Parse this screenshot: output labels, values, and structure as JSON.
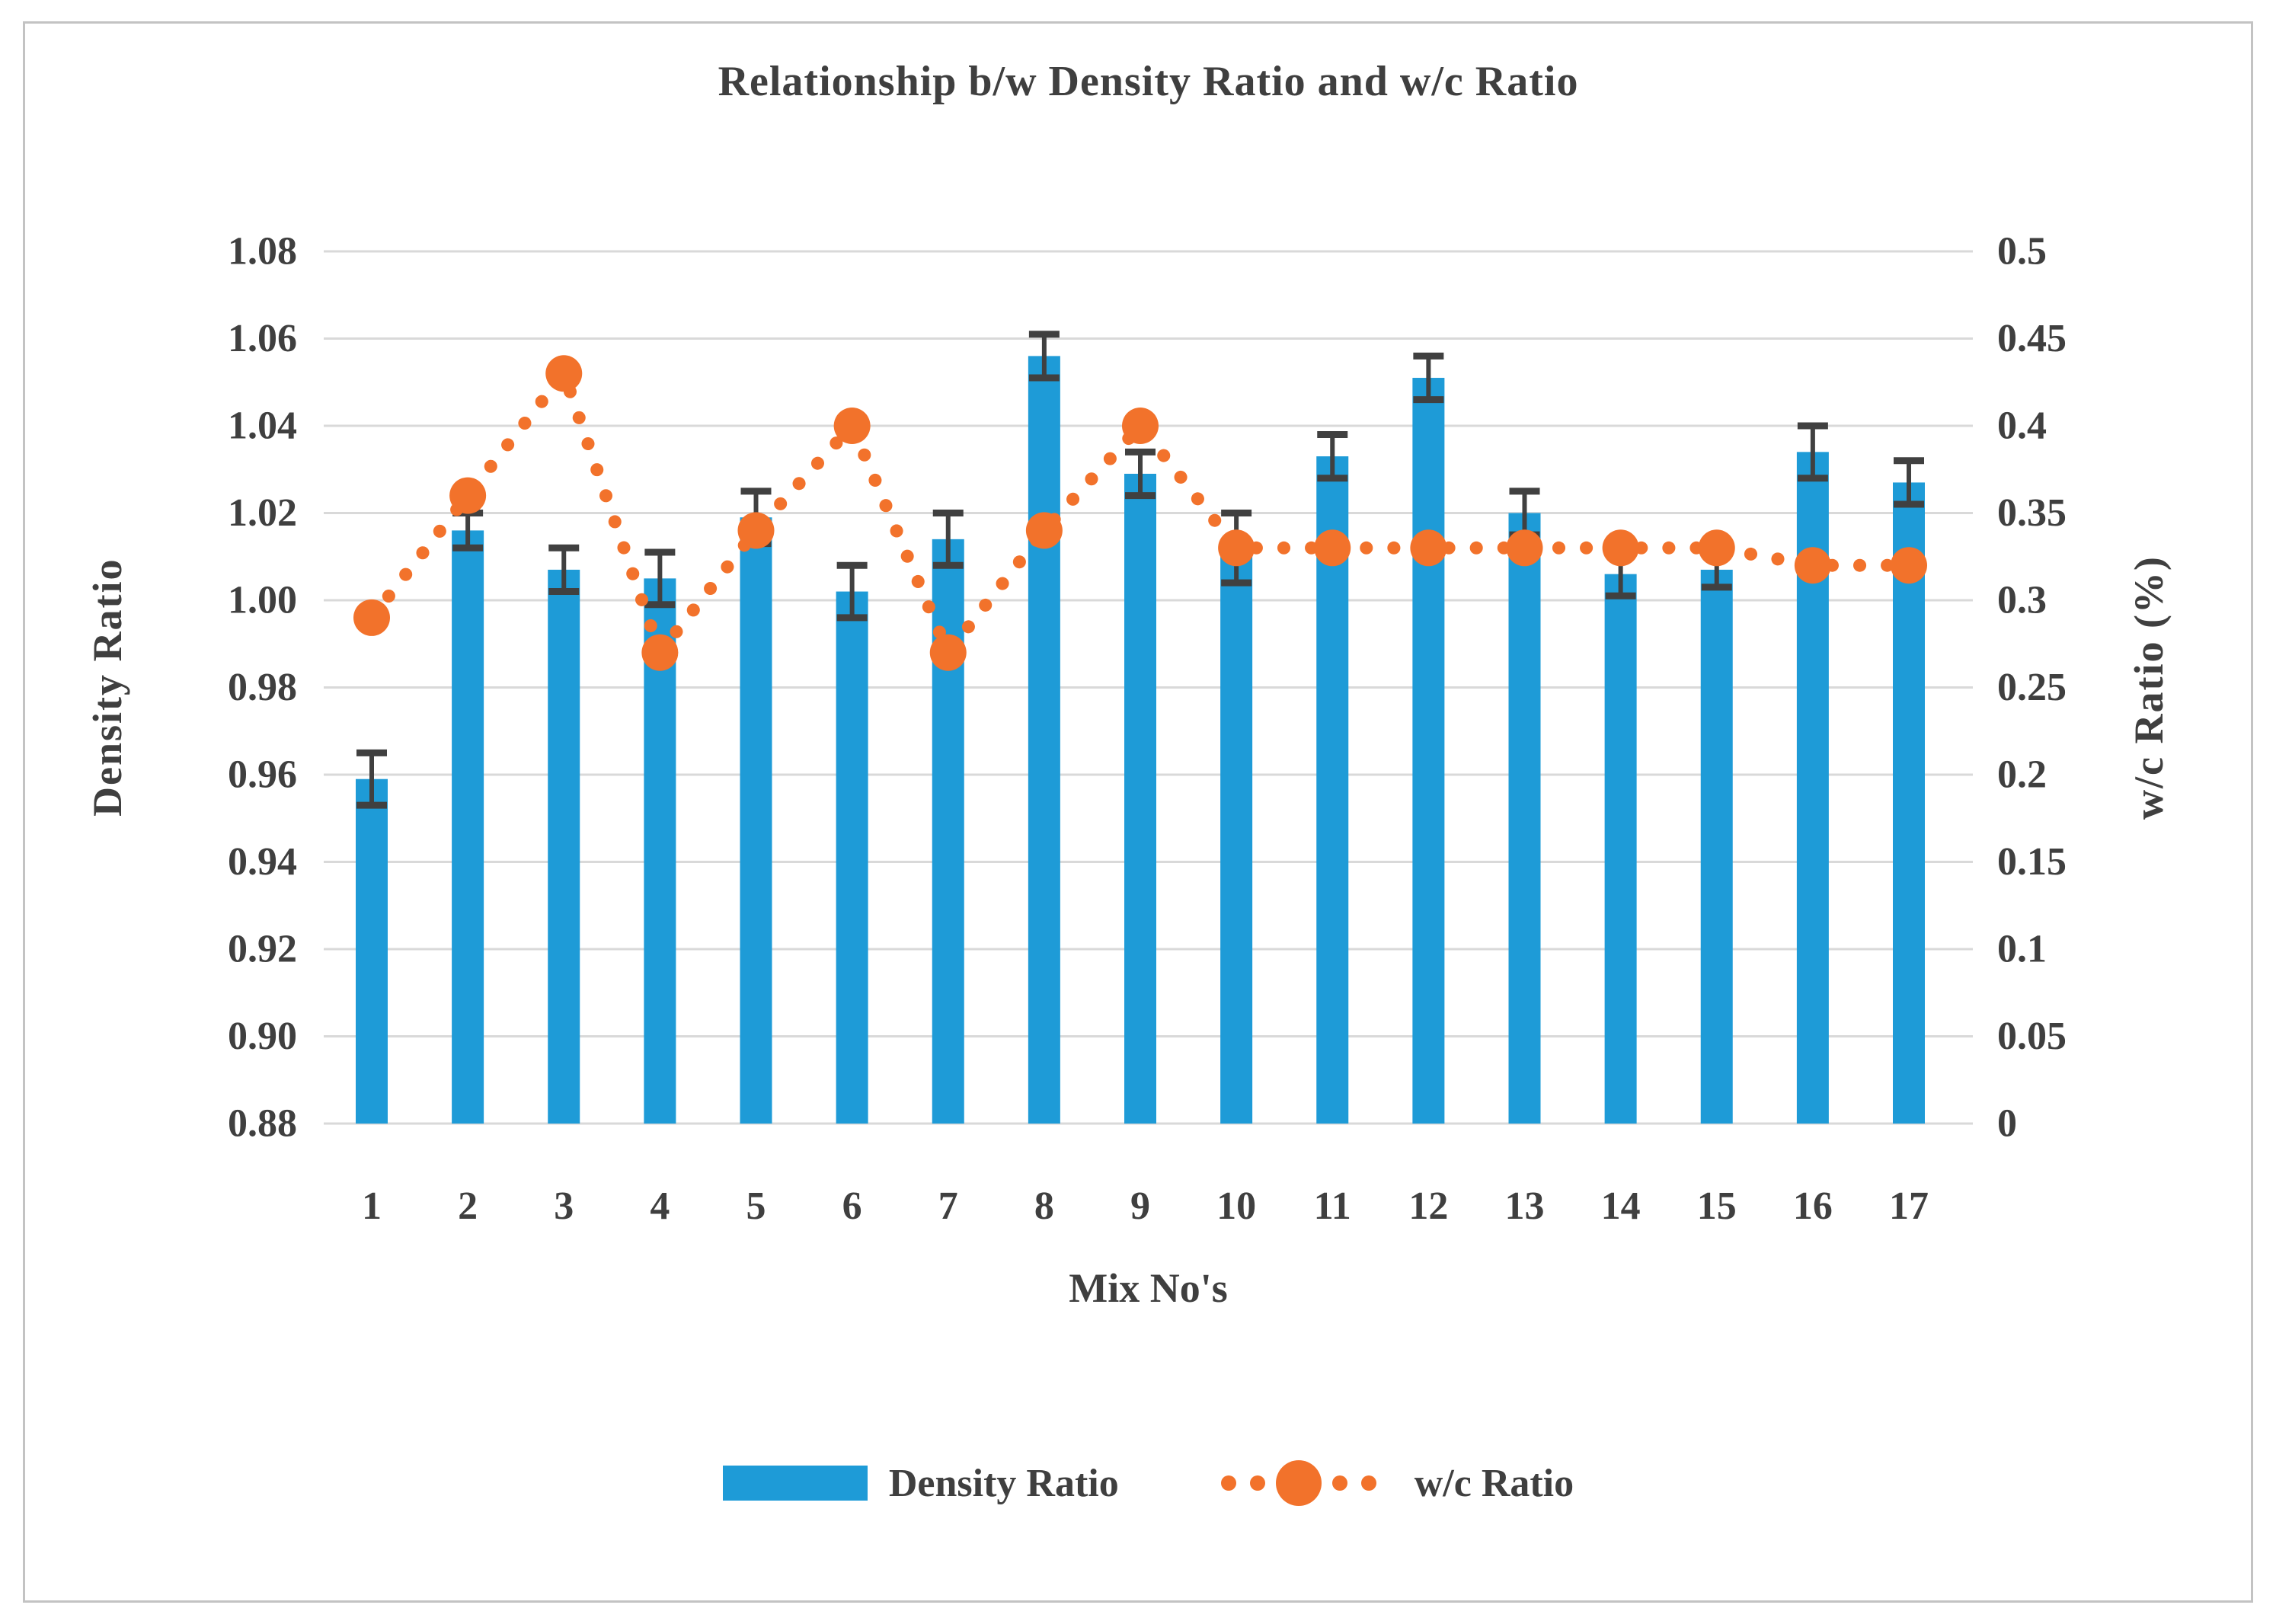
{
  "chart_data": {
    "type": "bar",
    "combo": "bar+dotted-line",
    "title": "Relationship b/w Density Ratio and w/c Ratio",
    "xlabel": "Mix No's",
    "categories": [
      "1",
      "2",
      "3",
      "4",
      "5",
      "6",
      "7",
      "8",
      "9",
      "10",
      "11",
      "12",
      "13",
      "14",
      "15",
      "16",
      "17"
    ],
    "series": [
      {
        "name": "Density Ratio",
        "type": "bar",
        "axis": "left",
        "values": [
          0.959,
          1.016,
          1.007,
          1.005,
          1.019,
          1.002,
          1.014,
          1.056,
          1.029,
          1.012,
          1.033,
          1.051,
          1.02,
          1.006,
          1.007,
          1.034,
          1.027
        ],
        "error_bars": [
          0.006,
          0.004,
          0.005,
          0.006,
          0.006,
          0.006,
          0.006,
          0.005,
          0.005,
          0.008,
          0.005,
          0.005,
          0.005,
          0.005,
          0.004,
          0.006,
          0.005
        ]
      },
      {
        "name": "w/c Ratio",
        "type": "line",
        "line_style": "dotted-round-markers",
        "axis": "right",
        "values": [
          0.29,
          0.36,
          0.43,
          0.27,
          0.34,
          0.4,
          0.27,
          0.34,
          0.4,
          0.33,
          0.33,
          0.33,
          0.33,
          0.33,
          0.33,
          0.32,
          0.32
        ]
      }
    ],
    "left_axis": {
      "title": "Density Ratio",
      "min": 0.88,
      "max": 1.08,
      "tick_labels": [
        "1.08",
        "1.06",
        "1.04",
        "1.02",
        "1.00",
        "0.98",
        "0.96",
        "0.94",
        "0.92",
        "0.90",
        "0.88"
      ]
    },
    "right_axis": {
      "title": "w/c Ratio (%)",
      "min": 0,
      "max": 0.5,
      "tick_labels": [
        "0.5",
        "0.45",
        "0.4",
        "0.35",
        "0.3",
        "0.25",
        "0.2",
        "0.15",
        "0.1",
        "0.05",
        "0"
      ]
    },
    "grid": true,
    "legend_position": "bottom"
  },
  "colors": {
    "bar": "#1E9BD7",
    "line": "#F2722B",
    "grid": "#D9D9D9",
    "error": "#404040",
    "text": "#3F3F3F",
    "frame": "#C3C3C3",
    "background": "#FFFFFF"
  }
}
